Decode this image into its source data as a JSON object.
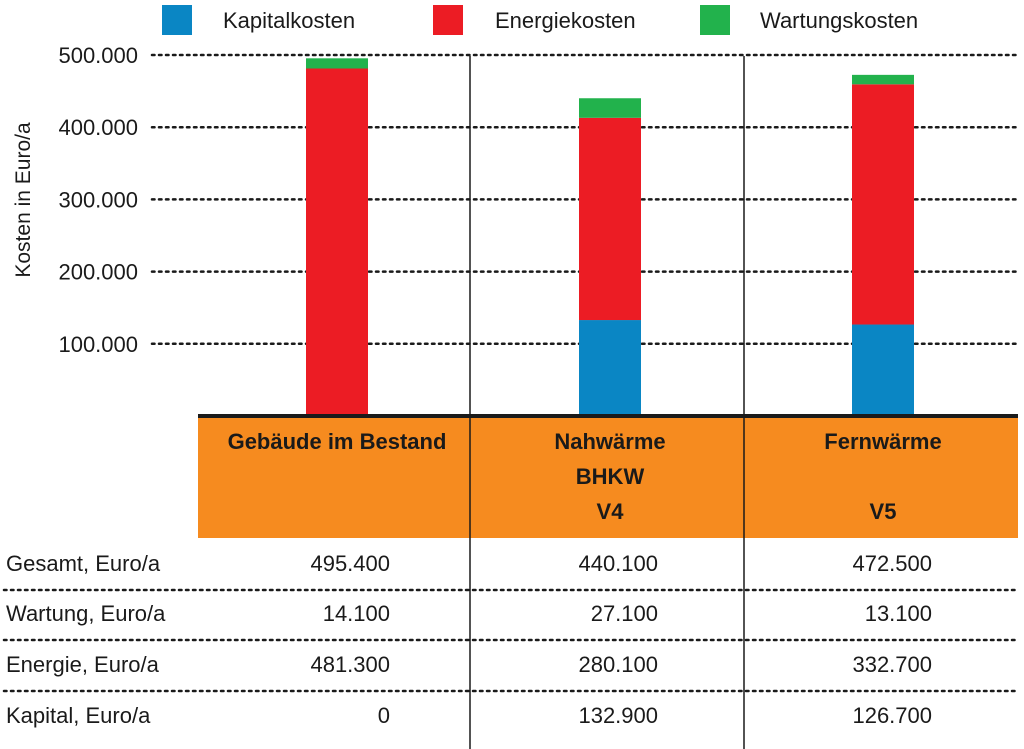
{
  "chart_data": {
    "type": "bar",
    "stacked": true,
    "ylabel": "Kosten in Euro/a",
    "ylim": [
      0,
      500000
    ],
    "yticks": [
      100000,
      200000,
      300000,
      400000,
      500000
    ],
    "ytick_labels": [
      "100.000",
      "200.000",
      "300.000",
      "400.000",
      "500.000"
    ],
    "grid": "dotted horizontal",
    "legend_position": "top",
    "categories": [
      [
        "Gebäude im Bestand"
      ],
      [
        "Nahwärme",
        "BHKW",
        "V4"
      ],
      [
        "Fernwärme",
        "",
        "V5"
      ]
    ],
    "series": [
      {
        "name": "Kapitalkosten",
        "color": "#0a86c4",
        "values": [
          0,
          132900,
          126700
        ]
      },
      {
        "name": "Energiekosten",
        "color": "#ec1c24",
        "values": [
          481300,
          280100,
          332700
        ]
      },
      {
        "name": "Wartungskosten",
        "color": "#22b24c",
        "values": [
          14100,
          27100,
          13100
        ]
      }
    ],
    "header_color": "#f68b1f",
    "table": {
      "rows": [
        {
          "label": "Gesamt, Euro/a",
          "values": [
            "495.400",
            "440.100",
            "472.500"
          ]
        },
        {
          "label": "Wartung, Euro/a",
          "values": [
            "14.100",
            "27.100",
            "13.100"
          ]
        },
        {
          "label": "Energie, Euro/a",
          "values": [
            "481.300",
            "280.100",
            "332.700"
          ]
        },
        {
          "label": "Kapital, Euro/a",
          "values": [
            "0",
            "132.900",
            "126.700"
          ]
        }
      ]
    }
  }
}
